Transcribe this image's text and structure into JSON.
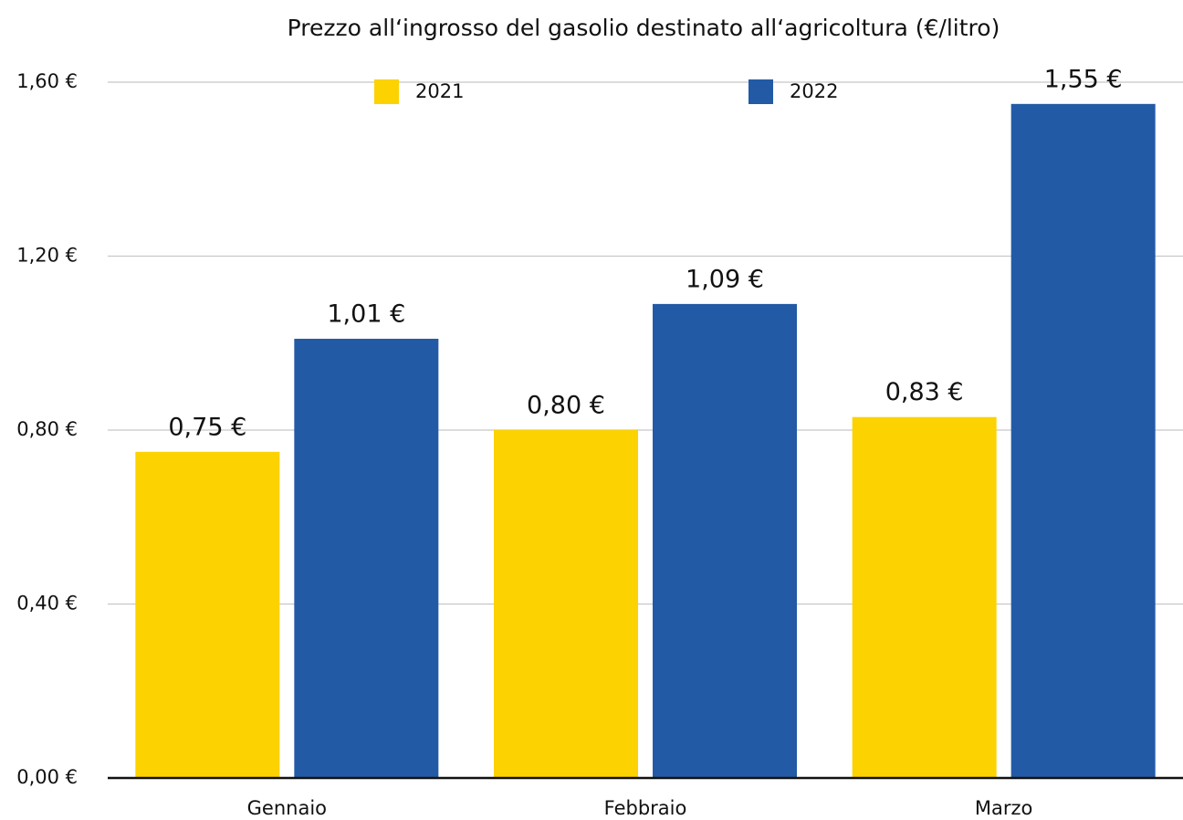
{
  "chart_data": {
    "type": "bar",
    "title": "Prezzo all‘ingrosso del gasolio destinato all‘agricoltura (€/litro)",
    "categories": [
      "Gennaio",
      "Febbraio",
      "Marzo"
    ],
    "series": [
      {
        "name": "2021",
        "color": "#fcd200",
        "values": [
          0.75,
          0.8,
          0.83
        ],
        "value_labels": [
          "0,75 €",
          "0,80 €",
          "0,83 €"
        ]
      },
      {
        "name": "2022",
        "color": "#235aa6",
        "values": [
          1.01,
          1.09,
          1.55
        ],
        "value_labels": [
          "1,01 €",
          "1,09 €",
          "1,55 €"
        ]
      }
    ],
    "ylim": [
      0,
      1.6
    ],
    "yticks": [
      {
        "value": 0,
        "label": "0,00 €"
      },
      {
        "value": 0.4,
        "label": "0,40 €"
      },
      {
        "value": 0.8,
        "label": "0,80 €"
      },
      {
        "value": 1.2,
        "label": "1,20 €"
      },
      {
        "value": 1.6,
        "label": "1,60 €"
      }
    ],
    "grid": true,
    "legend": "top"
  }
}
